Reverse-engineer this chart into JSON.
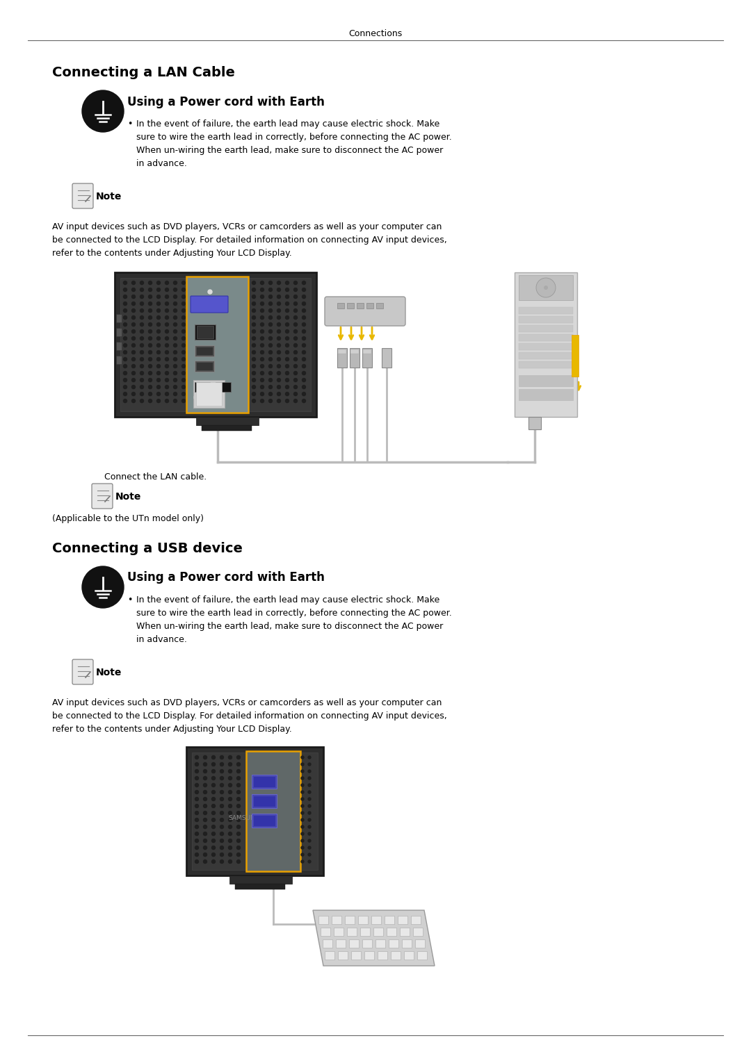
{
  "bg_color": "#ffffff",
  "page_header": "Connections",
  "section1_title": "Connecting a LAN Cable",
  "section1_subtitle": "Using a Power cord with Earth",
  "section1_warning_line1": "In the event of failure, the earth lead may cause electric shock. Make",
  "section1_warning_line2": "sure to wire the earth lead in correctly, before connecting the AC power.",
  "section1_warning_line3": "When un-wiring the earth lead, make sure to disconnect the AC power",
  "section1_warning_line4": "in advance.",
  "note_label": "Note",
  "section1_note_text_line1": "AV input devices such as DVD players, VCRs or camcorders as well as your computer can",
  "section1_note_text_line2": "be connected to the LCD Display. For detailed information on connecting AV input devices,",
  "section1_note_text_line3": "refer to the contents under Adjusting Your LCD Display.",
  "section1_caption": "Connect the LAN cable.",
  "section1_caption2": "(Applicable to the UTn model only)",
  "section2_title": "Connecting a USB device",
  "section2_subtitle": "Using a Power cord with Earth",
  "section2_warning_line1": "In the event of failure, the earth lead may cause electric shock. Make",
  "section2_warning_line2": "sure to wire the earth lead in correctly, before connecting the AC power.",
  "section2_warning_line3": "When un-wiring the earth lead, make sure to disconnect the AC power",
  "section2_warning_line4": "in advance.",
  "section2_note_text_line1": "AV input devices such as DVD players, VCRs or camcorders as well as your computer can",
  "section2_note_text_line2": "be connected to the LCD Display. For detailed information on connecting AV input devices,",
  "section2_note_text_line3": "refer to the contents under Adjusting Your LCD Display.",
  "text_color": "#000000",
  "header_line_color": "#666666"
}
